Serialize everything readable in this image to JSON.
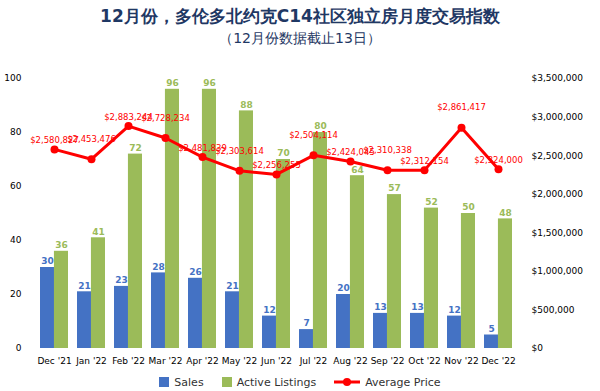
{
  "chart_data": {
    "type": "bar",
    "title": "12月份，多伦多北约克C14社区独立房月度交易指数",
    "subtitle": "（12月份数据截止13日）",
    "categories": [
      "Dec '21",
      "Jan '22",
      "Feb '22",
      "Mar '22",
      "Apr '22",
      "May '22",
      "Jun '22",
      "Jul '22",
      "Aug '22",
      "Sep '22",
      "Oct '22",
      "Nov '22",
      "Dec '22"
    ],
    "series": [
      {
        "name": "Sales",
        "type": "bar",
        "color": "#4472c4",
        "values": [
          30,
          21,
          23,
          28,
          26,
          21,
          12,
          7,
          20,
          13,
          13,
          12,
          5
        ]
      },
      {
        "name": "Active Listings",
        "type": "bar",
        "color": "#9bbb59",
        "values": [
          36,
          41,
          72,
          96,
          96,
          88,
          70,
          80,
          64,
          57,
          52,
          50,
          48
        ]
      },
      {
        "name": "Average Price",
        "type": "line",
        "axis": "y2",
        "color": "#ff0000",
        "marker": "circle",
        "line_style": "solid",
        "values": [
          2580827,
          2453476,
          2883244,
          2728234,
          2481839,
          2303614,
          2256255,
          2504114,
          2424045,
          2310338,
          2312154,
          2861417,
          2324000
        ],
        "value_labels": [
          "$2,580,827",
          "$2,453,476",
          "$2,883,244",
          "$2,728,234",
          "$2,481,839",
          "$2,303,614",
          "$2,256,255",
          "$2,504,114",
          "$2,424,045",
          "$2,310,338",
          "$2,312,154",
          "$2,861,417",
          "$2,324,000"
        ]
      }
    ],
    "ylim": [
      0,
      100
    ],
    "yticks": [
      0,
      20,
      40,
      60,
      80,
      100
    ],
    "y2lim": [
      0,
      3500000
    ],
    "y2ticks": [
      {
        "value": 0,
        "label": "$0"
      },
      {
        "value": 500000,
        "label": "$500,000"
      },
      {
        "value": 1000000,
        "label": "$1,000,000"
      },
      {
        "value": 1500000,
        "label": "$1,500,000"
      },
      {
        "value": 2000000,
        "label": "$2,000,000"
      },
      {
        "value": 2500000,
        "label": "$2,500,000"
      },
      {
        "value": 3000000,
        "label": "$3,000,000"
      },
      {
        "value": 3500000,
        "label": "$3,500,000"
      }
    ],
    "data_labels": true,
    "grid": false,
    "legend": "bottom"
  }
}
